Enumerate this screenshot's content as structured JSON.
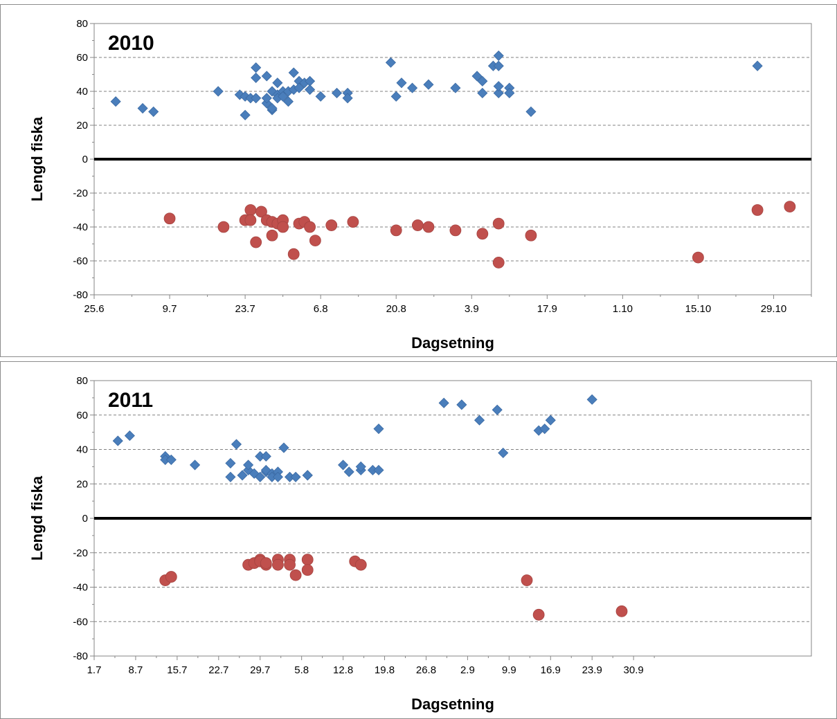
{
  "colors": {
    "male": "#4a7ebb",
    "female": "#c0504d",
    "grid": "#808080",
    "zero": "#000000"
  },
  "marker_shapes": [
    "diamond",
    "circle"
  ],
  "chart_data": [
    {
      "type": "scatter",
      "title": "2010",
      "xlabel": "Dagsetning",
      "ylabel": "Lengd fiska",
      "ylim": [
        -80,
        80
      ],
      "yticks": [
        80,
        60,
        40,
        20,
        0,
        -20,
        -40,
        -60,
        -80
      ],
      "xlim": [
        "2010-06-25",
        "2010-11-05"
      ],
      "xticks": [
        "25.6",
        "9.7",
        "23.7",
        "6.8",
        "20.8",
        "3.9",
        "17.9",
        "1.10",
        "15.10",
        "29.10"
      ],
      "xtick_dates": [
        "2010-06-25",
        "2010-07-09",
        "2010-07-23",
        "2010-08-06",
        "2010-08-20",
        "2010-09-03",
        "2010-09-17",
        "2010-10-01",
        "2010-10-15",
        "2010-10-29"
      ],
      "grid": "horizontal dashed",
      "series": [
        {
          "marker": "diamond",
          "color": "#4a7ebb",
          "points": [
            [
              "2010-06-29",
              34
            ],
            [
              "2010-07-04",
              30
            ],
            [
              "2010-07-06",
              28
            ],
            [
              "2010-07-18",
              40
            ],
            [
              "2010-07-22",
              38
            ],
            [
              "2010-07-23",
              37
            ],
            [
              "2010-07-23",
              26
            ],
            [
              "2010-07-24",
              36
            ],
            [
              "2010-07-25",
              48
            ],
            [
              "2010-07-25",
              54
            ],
            [
              "2010-07-25",
              36
            ],
            [
              "2010-07-27",
              49
            ],
            [
              "2010-07-27",
              33
            ],
            [
              "2010-07-27",
              36
            ],
            [
              "2010-07-28",
              40
            ],
            [
              "2010-07-28",
              29
            ],
            [
              "2010-07-28",
              30
            ],
            [
              "2010-07-29",
              38
            ],
            [
              "2010-07-29",
              36
            ],
            [
              "2010-07-29",
              45
            ],
            [
              "2010-07-30",
              40
            ],
            [
              "2010-07-30",
              37
            ],
            [
              "2010-07-31",
              34
            ],
            [
              "2010-07-31",
              40
            ],
            [
              "2010-08-01",
              51
            ],
            [
              "2010-08-01",
              41
            ],
            [
              "2010-08-02",
              46
            ],
            [
              "2010-08-02",
              42
            ],
            [
              "2010-08-03",
              45
            ],
            [
              "2010-08-04",
              46
            ],
            [
              "2010-08-04",
              41
            ],
            [
              "2010-08-06",
              37
            ],
            [
              "2010-08-09",
              39
            ],
            [
              "2010-08-11",
              39
            ],
            [
              "2010-08-11",
              36
            ],
            [
              "2010-08-19",
              57
            ],
            [
              "2010-08-20",
              37
            ],
            [
              "2010-08-21",
              45
            ],
            [
              "2010-08-23",
              42
            ],
            [
              "2010-08-26",
              44
            ],
            [
              "2010-08-31",
              42
            ],
            [
              "2010-09-04",
              49
            ],
            [
              "2010-09-05",
              46
            ],
            [
              "2010-09-05",
              39
            ],
            [
              "2010-09-07",
              55
            ],
            [
              "2010-09-08",
              55
            ],
            [
              "2010-09-08",
              61
            ],
            [
              "2010-09-08",
              39
            ],
            [
              "2010-09-08",
              43
            ],
            [
              "2010-09-10",
              42
            ],
            [
              "2010-09-10",
              39
            ],
            [
              "2010-09-14",
              28
            ],
            [
              "2010-10-26",
              55
            ]
          ]
        },
        {
          "marker": "circle",
          "color": "#c0504d",
          "points": [
            [
              "2010-07-09",
              -35
            ],
            [
              "2010-07-19",
              -40
            ],
            [
              "2010-07-23",
              -36
            ],
            [
              "2010-07-24",
              -30
            ],
            [
              "2010-07-24",
              -36
            ],
            [
              "2010-07-25",
              -49
            ],
            [
              "2010-07-26",
              -31
            ],
            [
              "2010-07-27",
              -36
            ],
            [
              "2010-07-28",
              -37
            ],
            [
              "2010-07-28",
              -45
            ],
            [
              "2010-07-29",
              -38
            ],
            [
              "2010-07-30",
              -36
            ],
            [
              "2010-07-30",
              -40
            ],
            [
              "2010-08-01",
              -56
            ],
            [
              "2010-08-02",
              -38
            ],
            [
              "2010-08-03",
              -37
            ],
            [
              "2010-08-04",
              -40
            ],
            [
              "2010-08-05",
              -48
            ],
            [
              "2010-08-08",
              -39
            ],
            [
              "2010-08-12",
              -37
            ],
            [
              "2010-08-20",
              -42
            ],
            [
              "2010-08-24",
              -39
            ],
            [
              "2010-08-26",
              -40
            ],
            [
              "2010-08-31",
              -42
            ],
            [
              "2010-09-05",
              -44
            ],
            [
              "2010-09-08",
              -38
            ],
            [
              "2010-09-08",
              -61
            ],
            [
              "2010-09-14",
              -45
            ],
            [
              "2010-10-15",
              -58
            ],
            [
              "2010-10-26",
              -30
            ],
            [
              "2010-11-01",
              -28
            ]
          ]
        }
      ]
    },
    {
      "type": "scatter",
      "title": "2011",
      "xlabel": "Dagsetning",
      "ylabel": "Lengd fiska",
      "ylim": [
        -80,
        80
      ],
      "yticks": [
        80,
        60,
        40,
        20,
        0,
        -20,
        -40,
        -60,
        -80
      ],
      "xlim": [
        "2011-07-01",
        "2011-10-30"
      ],
      "xticks": [
        "1.7",
        "8.7",
        "15.7",
        "22.7",
        "29.7",
        "5.8",
        "12.8",
        "19.8",
        "26.8",
        "2.9",
        "9.9",
        "16.9",
        "23.9",
        "30.9"
      ],
      "xtick_dates": [
        "2011-07-01",
        "2011-07-08",
        "2011-07-15",
        "2011-07-22",
        "2011-07-29",
        "2011-08-05",
        "2011-08-12",
        "2011-08-19",
        "2011-08-26",
        "2011-09-02",
        "2011-09-09",
        "2011-09-16",
        "2011-09-23",
        "2011-09-30"
      ],
      "grid": "horizontal dashed",
      "series": [
        {
          "marker": "diamond",
          "color": "#4a7ebb",
          "points": [
            [
              "2011-07-05",
              45
            ],
            [
              "2011-07-07",
              48
            ],
            [
              "2011-07-13",
              36
            ],
            [
              "2011-07-13",
              34
            ],
            [
              "2011-07-14",
              34
            ],
            [
              "2011-07-18",
              31
            ],
            [
              "2011-07-24",
              32
            ],
            [
              "2011-07-24",
              24
            ],
            [
              "2011-07-25",
              43
            ],
            [
              "2011-07-26",
              25
            ],
            [
              "2011-07-27",
              28
            ],
            [
              "2011-07-27",
              31
            ],
            [
              "2011-07-28",
              26
            ],
            [
              "2011-07-29",
              24
            ],
            [
              "2011-07-29",
              36
            ],
            [
              "2011-07-30",
              27
            ],
            [
              "2011-07-30",
              28
            ],
            [
              "2011-07-30",
              36
            ],
            [
              "2011-07-31",
              26
            ],
            [
              "2011-07-31",
              24
            ],
            [
              "2011-08-01",
              27
            ],
            [
              "2011-08-01",
              24
            ],
            [
              "2011-08-02",
              41
            ],
            [
              "2011-08-03",
              24
            ],
            [
              "2011-08-04",
              24
            ],
            [
              "2011-08-06",
              25
            ],
            [
              "2011-08-06",
              25
            ],
            [
              "2011-08-12",
              31
            ],
            [
              "2011-08-13",
              27
            ],
            [
              "2011-08-15",
              28
            ],
            [
              "2011-08-15",
              30
            ],
            [
              "2011-08-17",
              28
            ],
            [
              "2011-08-18",
              28
            ],
            [
              "2011-08-18",
              52
            ],
            [
              "2011-08-29",
              67
            ],
            [
              "2011-09-01",
              66
            ],
            [
              "2011-09-04",
              57
            ],
            [
              "2011-09-07",
              63
            ],
            [
              "2011-09-08",
              38
            ],
            [
              "2011-09-14",
              51
            ],
            [
              "2011-09-15",
              52
            ],
            [
              "2011-09-16",
              57
            ],
            [
              "2011-09-23",
              69
            ]
          ]
        },
        {
          "marker": "circle",
          "color": "#c0504d",
          "points": [
            [
              "2011-07-13",
              -36
            ],
            [
              "2011-07-14",
              -34
            ],
            [
              "2011-07-27",
              -27
            ],
            [
              "2011-07-28",
              -26
            ],
            [
              "2011-07-29",
              -24
            ],
            [
              "2011-07-29",
              -25
            ],
            [
              "2011-07-30",
              -27
            ],
            [
              "2011-07-30",
              -26
            ],
            [
              "2011-08-01",
              -24
            ],
            [
              "2011-08-01",
              -27
            ],
            [
              "2011-08-03",
              -24
            ],
            [
              "2011-08-03",
              -27
            ],
            [
              "2011-08-04",
              -33
            ],
            [
              "2011-08-06",
              -24
            ],
            [
              "2011-08-06",
              -30
            ],
            [
              "2011-08-14",
              -25
            ],
            [
              "2011-08-15",
              -27
            ],
            [
              "2011-09-12",
              -36
            ],
            [
              "2011-09-14",
              -56
            ],
            [
              "2011-09-28",
              -54
            ]
          ]
        }
      ]
    }
  ]
}
